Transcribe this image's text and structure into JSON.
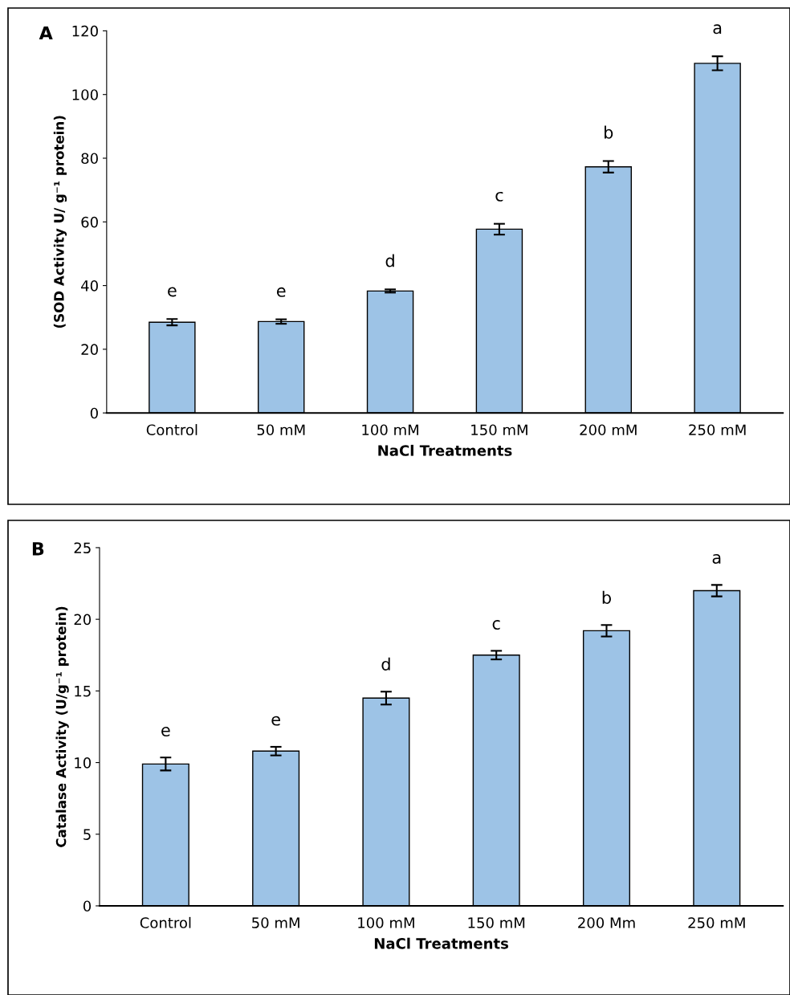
{
  "chart_data": [
    {
      "type": "bar",
      "title": "A",
      "xlabel": "NaCl Treatments",
      "ylabel": "(SOD Activity U/ g⁻¹ protein)",
      "categories": [
        "Control",
        "50 mM",
        "100 mM",
        "150 mM",
        "200 mM",
        "250 mM"
      ],
      "series": [
        {
          "color": "#9dc3e6",
          "values": [
            28.5,
            28.7,
            38.3,
            57.7,
            77.3,
            109.8
          ],
          "errors": [
            1.0,
            0.7,
            0.5,
            1.7,
            1.8,
            2.2
          ]
        }
      ],
      "ylim": [
        0,
        120
      ],
      "yticks": [
        0,
        20,
        40,
        60,
        80,
        100,
        120
      ],
      "grid": false,
      "annotations": [
        "e",
        "e",
        "d",
        "c",
        "b",
        "a"
      ]
    },
    {
      "type": "bar",
      "title": "B",
      "xlabel": "NaCl Treatments",
      "ylabel": "Catalase Activity (U/g⁻¹ protein)",
      "categories": [
        "Control",
        "50 mM",
        "100 mM",
        "150 mM",
        "200 Mm",
        "250 mM"
      ],
      "series": [
        {
          "color": "#9dc3e6",
          "values": [
            9.9,
            10.8,
            14.5,
            17.5,
            19.2,
            22.0
          ],
          "errors": [
            0.45,
            0.3,
            0.45,
            0.3,
            0.4,
            0.4
          ]
        }
      ],
      "ylim": [
        0,
        25
      ],
      "yticks": [
        0,
        5,
        10,
        15,
        20,
        25
      ],
      "grid": false,
      "annotations": [
        "e",
        "e",
        "d",
        "c",
        "b",
        "a"
      ]
    }
  ]
}
